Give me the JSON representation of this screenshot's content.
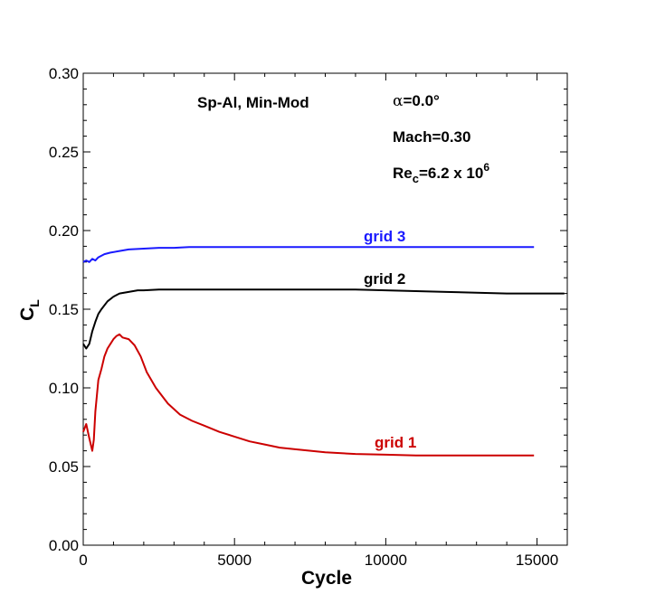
{
  "chart_data": {
    "type": "line",
    "xlabel": "Cycle",
    "ylabel": {
      "main": "C",
      "sub": "L"
    },
    "xlim": [
      0,
      16000
    ],
    "ylim": [
      0.0,
      0.3
    ],
    "x_ticks": [
      0,
      5000,
      10000,
      15000
    ],
    "x_tick_labels": [
      "0",
      "5000",
      "10000",
      "15000"
    ],
    "y_ticks": [
      0.0,
      0.05,
      0.1,
      0.15,
      0.2,
      0.25,
      0.3
    ],
    "y_tick_labels": [
      "0.00",
      "0.05",
      "0.10",
      "0.15",
      "0.20",
      "0.25",
      "0.30"
    ],
    "grid": false,
    "annotations": {
      "scheme": "Sp-Al, Min-Mod",
      "alpha": {
        "symbol": "α",
        "value": "=0.0°"
      },
      "mach": "Mach=0.30",
      "reynolds": {
        "base": "Re",
        "sub": "c",
        "value": "=6.2 x 10",
        "exp": "6"
      }
    },
    "series": [
      {
        "name": "grid 1",
        "color": "#cc0000",
        "x": [
          0,
          100,
          200,
          300,
          350,
          400,
          500,
          600,
          700,
          800,
          900,
          1000,
          1100,
          1200,
          1300,
          1500,
          1700,
          1900,
          2100,
          2400,
          2800,
          3200,
          3600,
          4000,
          4500,
          5000,
          5500,
          6000,
          6500,
          7000,
          8000,
          9000,
          10000,
          11000,
          12000,
          13000,
          14000,
          14900
        ],
        "y": [
          0.072,
          0.077,
          0.068,
          0.06,
          0.067,
          0.085,
          0.105,
          0.112,
          0.12,
          0.125,
          0.128,
          0.131,
          0.133,
          0.134,
          0.132,
          0.131,
          0.127,
          0.12,
          0.11,
          0.1,
          0.09,
          0.083,
          0.079,
          0.076,
          0.072,
          0.069,
          0.066,
          0.064,
          0.062,
          0.061,
          0.059,
          0.058,
          0.0575,
          0.057,
          0.057,
          0.057,
          0.057,
          0.057
        ]
      },
      {
        "name": "grid 2",
        "color": "#000000",
        "x": [
          0,
          100,
          200,
          300,
          400,
          500,
          600,
          800,
          1000,
          1200,
          1500,
          1800,
          2000,
          2500,
          3000,
          4000,
          5000,
          6000,
          7000,
          8000,
          9000,
          10000,
          11000,
          12000,
          13000,
          14000,
          15000,
          15900
        ],
        "y": [
          0.128,
          0.125,
          0.128,
          0.136,
          0.142,
          0.147,
          0.15,
          0.155,
          0.158,
          0.16,
          0.161,
          0.162,
          0.162,
          0.1625,
          0.1625,
          0.1625,
          0.1625,
          0.1625,
          0.1625,
          0.1625,
          0.1625,
          0.162,
          0.1615,
          0.161,
          0.1605,
          0.16,
          0.16,
          0.16
        ]
      },
      {
        "name": "grid 3",
        "color": "#1a1aff",
        "x": [
          0,
          100,
          200,
          300,
          400,
          500,
          700,
          900,
          1200,
          1500,
          2000,
          2500,
          3000,
          3500,
          4000,
          5000,
          6000,
          8000,
          10000,
          12000,
          14000,
          14900
        ],
        "y": [
          0.18,
          0.181,
          0.18,
          0.182,
          0.181,
          0.183,
          0.185,
          0.186,
          0.187,
          0.188,
          0.1885,
          0.189,
          0.189,
          0.1895,
          0.1895,
          0.1895,
          0.1895,
          0.1895,
          0.1895,
          0.1895,
          0.1895,
          0.1895
        ]
      }
    ]
  }
}
